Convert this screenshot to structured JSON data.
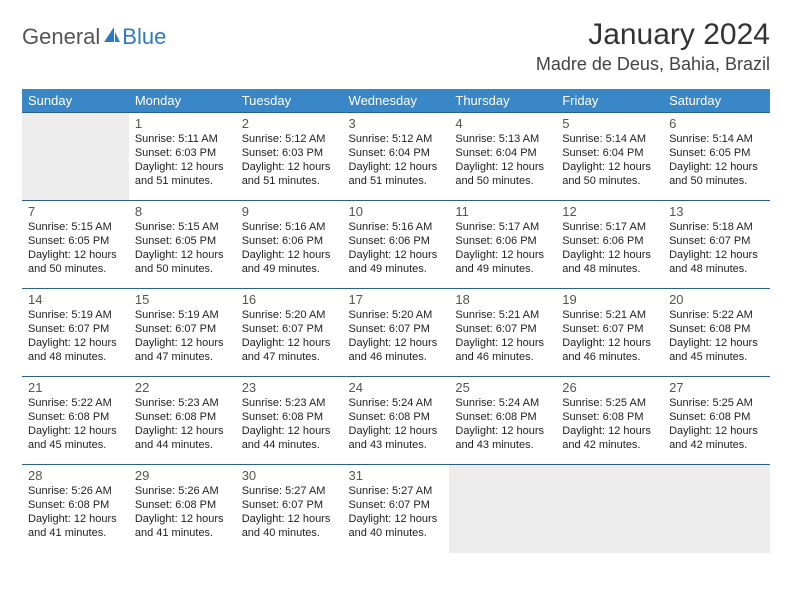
{
  "brand": {
    "general": "General",
    "blue": "Blue",
    "sail_color": "#2f78c2"
  },
  "title": "January 2024",
  "location": "Madre de Deus, Bahia, Brazil",
  "colors": {
    "header_bg": "#3a87c8",
    "header_text": "#ffffff",
    "row_border": "#2b5f8c",
    "empty_bg": "#ececec",
    "text": "#212121"
  },
  "day_headers": [
    "Sunday",
    "Monday",
    "Tuesday",
    "Wednesday",
    "Thursday",
    "Friday",
    "Saturday"
  ],
  "weeks": [
    [
      null,
      {
        "n": "1",
        "sr": "5:11 AM",
        "ss": "6:03 PM",
        "dl": "12 hours and 51 minutes."
      },
      {
        "n": "2",
        "sr": "5:12 AM",
        "ss": "6:03 PM",
        "dl": "12 hours and 51 minutes."
      },
      {
        "n": "3",
        "sr": "5:12 AM",
        "ss": "6:04 PM",
        "dl": "12 hours and 51 minutes."
      },
      {
        "n": "4",
        "sr": "5:13 AM",
        "ss": "6:04 PM",
        "dl": "12 hours and 50 minutes."
      },
      {
        "n": "5",
        "sr": "5:14 AM",
        "ss": "6:04 PM",
        "dl": "12 hours and 50 minutes."
      },
      {
        "n": "6",
        "sr": "5:14 AM",
        "ss": "6:05 PM",
        "dl": "12 hours and 50 minutes."
      }
    ],
    [
      {
        "n": "7",
        "sr": "5:15 AM",
        "ss": "6:05 PM",
        "dl": "12 hours and 50 minutes."
      },
      {
        "n": "8",
        "sr": "5:15 AM",
        "ss": "6:05 PM",
        "dl": "12 hours and 50 minutes."
      },
      {
        "n": "9",
        "sr": "5:16 AM",
        "ss": "6:06 PM",
        "dl": "12 hours and 49 minutes."
      },
      {
        "n": "10",
        "sr": "5:16 AM",
        "ss": "6:06 PM",
        "dl": "12 hours and 49 minutes."
      },
      {
        "n": "11",
        "sr": "5:17 AM",
        "ss": "6:06 PM",
        "dl": "12 hours and 49 minutes."
      },
      {
        "n": "12",
        "sr": "5:17 AM",
        "ss": "6:06 PM",
        "dl": "12 hours and 48 minutes."
      },
      {
        "n": "13",
        "sr": "5:18 AM",
        "ss": "6:07 PM",
        "dl": "12 hours and 48 minutes."
      }
    ],
    [
      {
        "n": "14",
        "sr": "5:19 AM",
        "ss": "6:07 PM",
        "dl": "12 hours and 48 minutes."
      },
      {
        "n": "15",
        "sr": "5:19 AM",
        "ss": "6:07 PM",
        "dl": "12 hours and 47 minutes."
      },
      {
        "n": "16",
        "sr": "5:20 AM",
        "ss": "6:07 PM",
        "dl": "12 hours and 47 minutes."
      },
      {
        "n": "17",
        "sr": "5:20 AM",
        "ss": "6:07 PM",
        "dl": "12 hours and 46 minutes."
      },
      {
        "n": "18",
        "sr": "5:21 AM",
        "ss": "6:07 PM",
        "dl": "12 hours and 46 minutes."
      },
      {
        "n": "19",
        "sr": "5:21 AM",
        "ss": "6:07 PM",
        "dl": "12 hours and 46 minutes."
      },
      {
        "n": "20",
        "sr": "5:22 AM",
        "ss": "6:08 PM",
        "dl": "12 hours and 45 minutes."
      }
    ],
    [
      {
        "n": "21",
        "sr": "5:22 AM",
        "ss": "6:08 PM",
        "dl": "12 hours and 45 minutes."
      },
      {
        "n": "22",
        "sr": "5:23 AM",
        "ss": "6:08 PM",
        "dl": "12 hours and 44 minutes."
      },
      {
        "n": "23",
        "sr": "5:23 AM",
        "ss": "6:08 PM",
        "dl": "12 hours and 44 minutes."
      },
      {
        "n": "24",
        "sr": "5:24 AM",
        "ss": "6:08 PM",
        "dl": "12 hours and 43 minutes."
      },
      {
        "n": "25",
        "sr": "5:24 AM",
        "ss": "6:08 PM",
        "dl": "12 hours and 43 minutes."
      },
      {
        "n": "26",
        "sr": "5:25 AM",
        "ss": "6:08 PM",
        "dl": "12 hours and 42 minutes."
      },
      {
        "n": "27",
        "sr": "5:25 AM",
        "ss": "6:08 PM",
        "dl": "12 hours and 42 minutes."
      }
    ],
    [
      {
        "n": "28",
        "sr": "5:26 AM",
        "ss": "6:08 PM",
        "dl": "12 hours and 41 minutes."
      },
      {
        "n": "29",
        "sr": "5:26 AM",
        "ss": "6:08 PM",
        "dl": "12 hours and 41 minutes."
      },
      {
        "n": "30",
        "sr": "5:27 AM",
        "ss": "6:07 PM",
        "dl": "12 hours and 40 minutes."
      },
      {
        "n": "31",
        "sr": "5:27 AM",
        "ss": "6:07 PM",
        "dl": "12 hours and 40 minutes."
      },
      null,
      null,
      null
    ]
  ],
  "labels": {
    "sunrise": "Sunrise:",
    "sunset": "Sunset:",
    "daylight": "Daylight:"
  }
}
